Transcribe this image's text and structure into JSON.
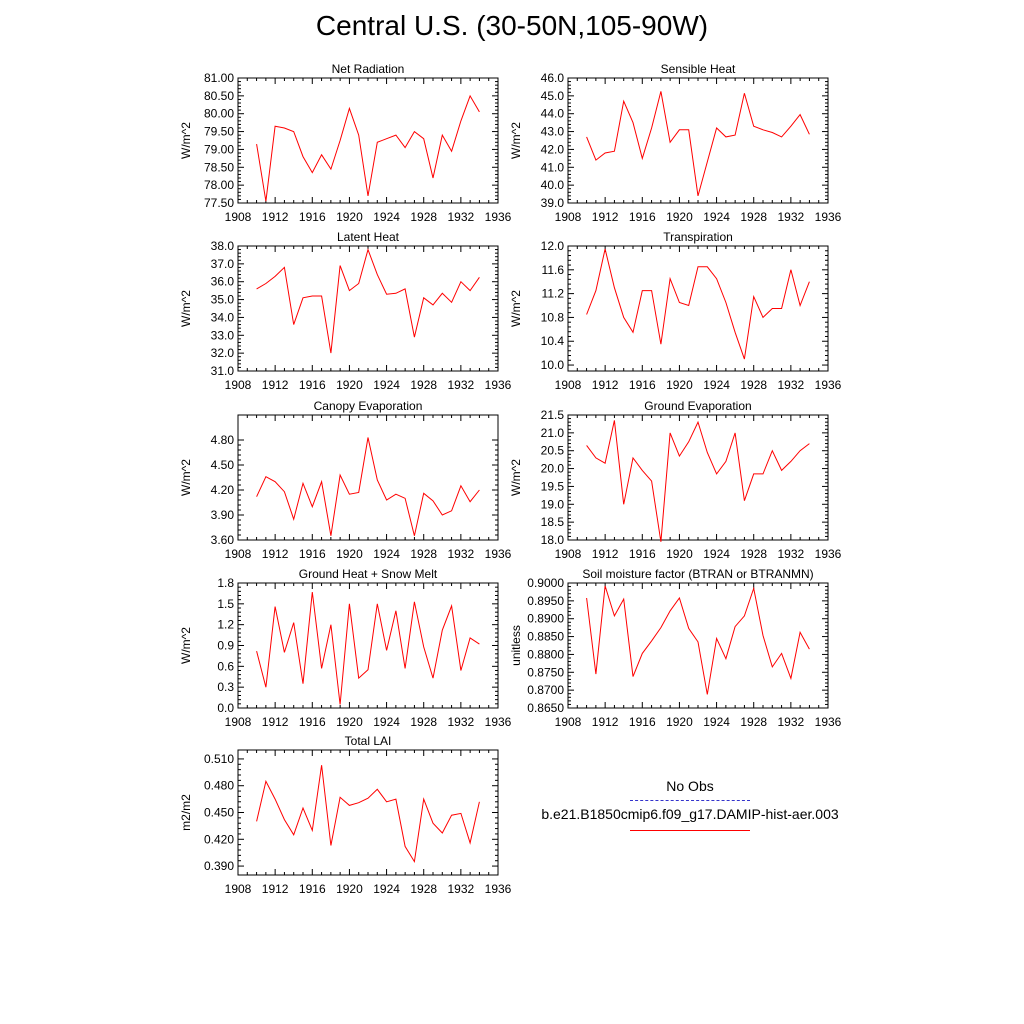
{
  "title": "Central U.S. (30-50N,105-90W)",
  "line_color": "#ff0000",
  "obs_color": "#3333cc",
  "legend": {
    "obs_label": "No Obs",
    "case_label": "b.e21.B1850cmip6.f09_g17.DAMIP-hist-aer.003"
  },
  "chart_data": [
    {
      "type": "line",
      "title": "Net Radiation",
      "ylabel": "W/m^2",
      "ylim": [
        77.5,
        81.0
      ],
      "yticks": [
        "77.50",
        "78.00",
        "78.50",
        "79.00",
        "79.50",
        "80.00",
        "80.50",
        "81.00"
      ],
      "xlim": [
        1908,
        1936
      ],
      "xticks": [
        "1908",
        "1912",
        "1916",
        "1920",
        "1924",
        "1928",
        "1932",
        "1936"
      ],
      "x": [
        1910,
        1911,
        1912,
        1913,
        1914,
        1915,
        1916,
        1917,
        1918,
        1919,
        1920,
        1921,
        1922,
        1923,
        1924,
        1925,
        1926,
        1927,
        1928,
        1929,
        1930,
        1931,
        1932,
        1933,
        1934
      ],
      "values": [
        79.15,
        77.55,
        79.65,
        79.6,
        79.5,
        78.8,
        78.35,
        78.85,
        78.45,
        79.25,
        80.15,
        79.4,
        77.7,
        79.2,
        79.3,
        79.4,
        79.05,
        79.5,
        79.3,
        78.2,
        79.4,
        78.95,
        79.8,
        80.5,
        80.05
      ]
    },
    {
      "type": "line",
      "title": "Sensible Heat",
      "ylabel": "W/m^2",
      "ylim": [
        39.0,
        46.0
      ],
      "yticks": [
        "39.0",
        "40.0",
        "41.0",
        "42.0",
        "43.0",
        "44.0",
        "45.0",
        "46.0"
      ],
      "xlim": [
        1908,
        1936
      ],
      "xticks": [
        "1908",
        "1912",
        "1916",
        "1920",
        "1924",
        "1928",
        "1932",
        "1936"
      ],
      "x": [
        1910,
        1911,
        1912,
        1913,
        1914,
        1915,
        1916,
        1917,
        1918,
        1919,
        1920,
        1921,
        1922,
        1923,
        1924,
        1925,
        1926,
        1927,
        1928,
        1929,
        1930,
        1931,
        1932,
        1933,
        1934
      ],
      "values": [
        42.7,
        41.4,
        41.8,
        41.9,
        44.7,
        43.5,
        41.5,
        43.2,
        45.25,
        42.4,
        43.1,
        43.1,
        39.4,
        41.3,
        43.2,
        42.7,
        42.8,
        45.15,
        43.3,
        43.1,
        42.95,
        42.7,
        43.3,
        43.95,
        42.85
      ]
    },
    {
      "type": "line",
      "title": "Latent Heat",
      "ylabel": "W/m^2",
      "ylim": [
        31.0,
        38.0
      ],
      "yticks": [
        "31.0",
        "32.0",
        "33.0",
        "34.0",
        "35.0",
        "36.0",
        "37.0",
        "38.0"
      ],
      "xlim": [
        1908,
        1936
      ],
      "xticks": [
        "1908",
        "1912",
        "1916",
        "1920",
        "1924",
        "1928",
        "1932",
        "1936"
      ],
      "x": [
        1910,
        1911,
        1912,
        1913,
        1914,
        1915,
        1916,
        1917,
        1918,
        1919,
        1920,
        1921,
        1922,
        1923,
        1924,
        1925,
        1926,
        1927,
        1928,
        1929,
        1930,
        1931,
        1932,
        1933,
        1934
      ],
      "values": [
        35.6,
        35.9,
        36.3,
        36.8,
        33.6,
        35.1,
        35.2,
        35.2,
        32.0,
        36.9,
        35.5,
        35.9,
        37.8,
        36.4,
        35.3,
        35.35,
        35.6,
        32.9,
        35.1,
        34.7,
        35.35,
        34.85,
        36.0,
        35.5,
        36.25
      ]
    },
    {
      "type": "line",
      "title": "Transpiration",
      "ylabel": "W/m^2",
      "ylim": [
        9.9,
        12.0
      ],
      "yticks": [
        "10.0",
        "10.4",
        "10.8",
        "11.2",
        "11.6",
        "12.0"
      ],
      "xlim": [
        1908,
        1936
      ],
      "xticks": [
        "1908",
        "1912",
        "1916",
        "1920",
        "1924",
        "1928",
        "1932",
        "1936"
      ],
      "x": [
        1910,
        1911,
        1912,
        1913,
        1914,
        1915,
        1916,
        1917,
        1918,
        1919,
        1920,
        1921,
        1922,
        1923,
        1924,
        1925,
        1926,
        1927,
        1928,
        1929,
        1930,
        1931,
        1932,
        1933,
        1934
      ],
      "values": [
        10.85,
        11.25,
        11.95,
        11.3,
        10.8,
        10.55,
        11.25,
        11.25,
        10.35,
        11.45,
        11.05,
        11.0,
        11.65,
        11.65,
        11.45,
        11.05,
        10.55,
        10.1,
        11.15,
        10.8,
        10.95,
        10.95,
        11.6,
        11.0,
        11.4
      ]
    },
    {
      "type": "line",
      "title": "Canopy Evaporation",
      "ylabel": "W/m^2",
      "ylim": [
        3.6,
        5.1
      ],
      "yticks": [
        "3.60",
        "3.90",
        "4.20",
        "4.50",
        "4.80"
      ],
      "xlim": [
        1908,
        1936
      ],
      "xticks": [
        "1908",
        "1912",
        "1916",
        "1920",
        "1924",
        "1928",
        "1932",
        "1936"
      ],
      "x": [
        1910,
        1911,
        1912,
        1913,
        1914,
        1915,
        1916,
        1917,
        1918,
        1919,
        1920,
        1921,
        1922,
        1923,
        1924,
        1925,
        1926,
        1927,
        1928,
        1929,
        1930,
        1931,
        1932,
        1933,
        1934
      ],
      "values": [
        4.12,
        4.36,
        4.3,
        4.18,
        3.85,
        4.28,
        4.0,
        4.3,
        3.65,
        4.38,
        4.15,
        4.17,
        4.83,
        4.32,
        4.08,
        4.15,
        4.1,
        3.65,
        4.16,
        4.07,
        3.9,
        3.95,
        4.25,
        4.06,
        4.2
      ]
    },
    {
      "type": "line",
      "title": "Ground Evaporation",
      "ylabel": "W/m^2",
      "ylim": [
        18.0,
        21.5
      ],
      "yticks": [
        "18.0",
        "18.5",
        "19.0",
        "19.5",
        "20.0",
        "20.5",
        "21.0",
        "21.5"
      ],
      "xlim": [
        1908,
        1936
      ],
      "xticks": [
        "1908",
        "1912",
        "1916",
        "1920",
        "1924",
        "1928",
        "1932",
        "1936"
      ],
      "x": [
        1910,
        1911,
        1912,
        1913,
        1914,
        1915,
        1916,
        1917,
        1918,
        1919,
        1920,
        1921,
        1922,
        1923,
        1924,
        1925,
        1926,
        1927,
        1928,
        1929,
        1930,
        1931,
        1932,
        1933,
        1934
      ],
      "values": [
        20.65,
        20.3,
        20.15,
        21.35,
        19.0,
        20.3,
        19.95,
        19.65,
        17.95,
        21.0,
        20.35,
        20.75,
        21.3,
        20.45,
        19.85,
        20.2,
        21.0,
        19.1,
        19.85,
        19.85,
        20.5,
        19.95,
        20.2,
        20.5,
        20.7
      ]
    },
    {
      "type": "line",
      "title": "Ground Heat + Snow Melt",
      "ylabel": "W/m^2",
      "ylim": [
        0.0,
        1.8
      ],
      "yticks": [
        "0.0",
        "0.3",
        "0.6",
        "0.9",
        "1.2",
        "1.5",
        "1.8"
      ],
      "xlim": [
        1908,
        1936
      ],
      "xticks": [
        "1908",
        "1912",
        "1916",
        "1920",
        "1924",
        "1928",
        "1932",
        "1936"
      ],
      "x": [
        1910,
        1911,
        1912,
        1913,
        1914,
        1915,
        1916,
        1917,
        1918,
        1919,
        1920,
        1921,
        1922,
        1923,
        1924,
        1925,
        1926,
        1927,
        1928,
        1929,
        1930,
        1931,
        1932,
        1933,
        1934
      ],
      "values": [
        0.82,
        0.3,
        1.46,
        0.8,
        1.23,
        0.35,
        1.67,
        0.57,
        1.2,
        0.05,
        1.5,
        0.43,
        0.55,
        1.5,
        0.83,
        1.4,
        0.57,
        1.53,
        0.88,
        0.43,
        1.12,
        1.47,
        0.54,
        1.01,
        0.92
      ]
    },
    {
      "type": "line",
      "title": "Soil moisture factor (BTRAN or BTRANMN)",
      "ylabel": "unitless",
      "ylim": [
        0.865,
        0.9
      ],
      "yticks": [
        "0.8650",
        "0.8700",
        "0.8750",
        "0.8800",
        "0.8850",
        "0.8900",
        "0.8950",
        "0.9000"
      ],
      "xlim": [
        1908,
        1936
      ],
      "xticks": [
        "1908",
        "1912",
        "1916",
        "1920",
        "1924",
        "1928",
        "1932",
        "1936"
      ],
      "x": [
        1910,
        1911,
        1912,
        1913,
        1914,
        1915,
        1916,
        1917,
        1918,
        1919,
        1920,
        1921,
        1922,
        1923,
        1924,
        1925,
        1926,
        1927,
        1928,
        1929,
        1930,
        1931,
        1932,
        1933,
        1934
      ],
      "values": [
        0.8958,
        0.8745,
        0.8992,
        0.8908,
        0.8955,
        0.8738,
        0.8803,
        0.8838,
        0.8875,
        0.8922,
        0.8958,
        0.8873,
        0.8835,
        0.8688,
        0.8845,
        0.8788,
        0.8878,
        0.8908,
        0.8985,
        0.8853,
        0.8765,
        0.8803,
        0.8733,
        0.8862,
        0.8815
      ]
    },
    {
      "type": "line",
      "title": "Total LAI",
      "ylabel": "m2/m2",
      "ylim": [
        0.38,
        0.52
      ],
      "yticks": [
        "0.390",
        "0.420",
        "0.450",
        "0.480",
        "0.510"
      ],
      "xlim": [
        1908,
        1936
      ],
      "xticks": [
        "1908",
        "1912",
        "1916",
        "1920",
        "1924",
        "1928",
        "1932",
        "1936"
      ],
      "x": [
        1910,
        1911,
        1912,
        1913,
        1914,
        1915,
        1916,
        1917,
        1918,
        1919,
        1920,
        1921,
        1922,
        1923,
        1924,
        1925,
        1926,
        1927,
        1928,
        1929,
        1930,
        1931,
        1932,
        1933,
        1934
      ],
      "values": [
        0.44,
        0.485,
        0.465,
        0.442,
        0.425,
        0.455,
        0.43,
        0.503,
        0.413,
        0.467,
        0.458,
        0.461,
        0.466,
        0.476,
        0.462,
        0.465,
        0.412,
        0.395,
        0.465,
        0.438,
        0.427,
        0.447,
        0.449,
        0.416,
        0.462
      ]
    }
  ]
}
